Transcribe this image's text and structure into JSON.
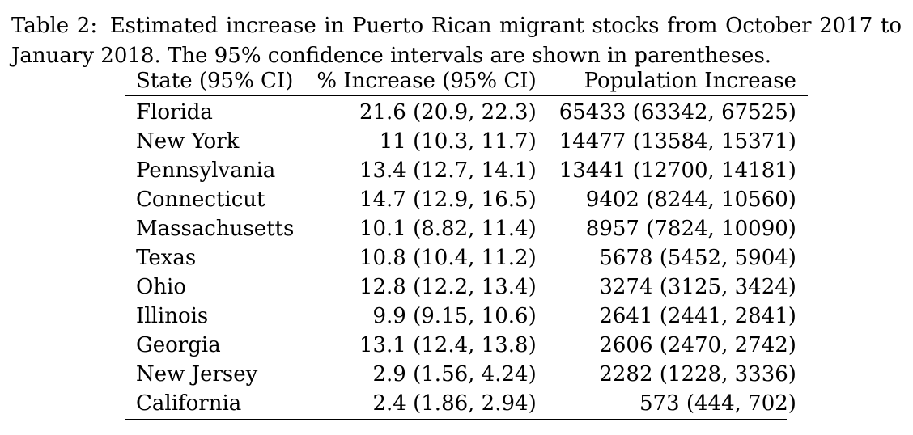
{
  "caption": {
    "label": "Table 2:",
    "text": "Estimated increase in Puerto Rican migrant stocks from October 2017 to January 2018. The 95% confidence intervals are shown in parentheses."
  },
  "table": {
    "headers": [
      "State (95% CI)",
      "% Increase (95% CI)",
      "Population Increase"
    ],
    "rows": [
      [
        "Florida",
        "21.6 (20.9, 22.3)",
        "65433 (63342, 67525)"
      ],
      [
        "New York",
        "11 (10.3, 11.7)",
        "14477 (13584, 15371)"
      ],
      [
        "Pennsylvania",
        "13.4 (12.7, 14.1)",
        "13441 (12700, 14181)"
      ],
      [
        "Connecticut",
        "14.7 (12.9, 16.5)",
        "9402 (8244, 10560)"
      ],
      [
        "Massachusetts",
        "10.1 (8.82, 11.4)",
        "8957 (7824, 10090)"
      ],
      [
        "Texas",
        "10.8 (10.4, 11.2)",
        "5678 (5452, 5904)"
      ],
      [
        "Ohio",
        "12.8 (12.2, 13.4)",
        "3274 (3125, 3424)"
      ],
      [
        "Illinois",
        "9.9 (9.15, 10.6)",
        "2641 (2441, 2841)"
      ],
      [
        "Georgia",
        "13.1 (12.4, 13.8)",
        "2606 (2470, 2742)"
      ],
      [
        "New Jersey",
        "2.9 (1.56, 4.24)",
        "2282 (1228, 3336)"
      ],
      [
        "California",
        "2.4 (1.86, 2.94)",
        "573 (444, 702)"
      ]
    ]
  }
}
